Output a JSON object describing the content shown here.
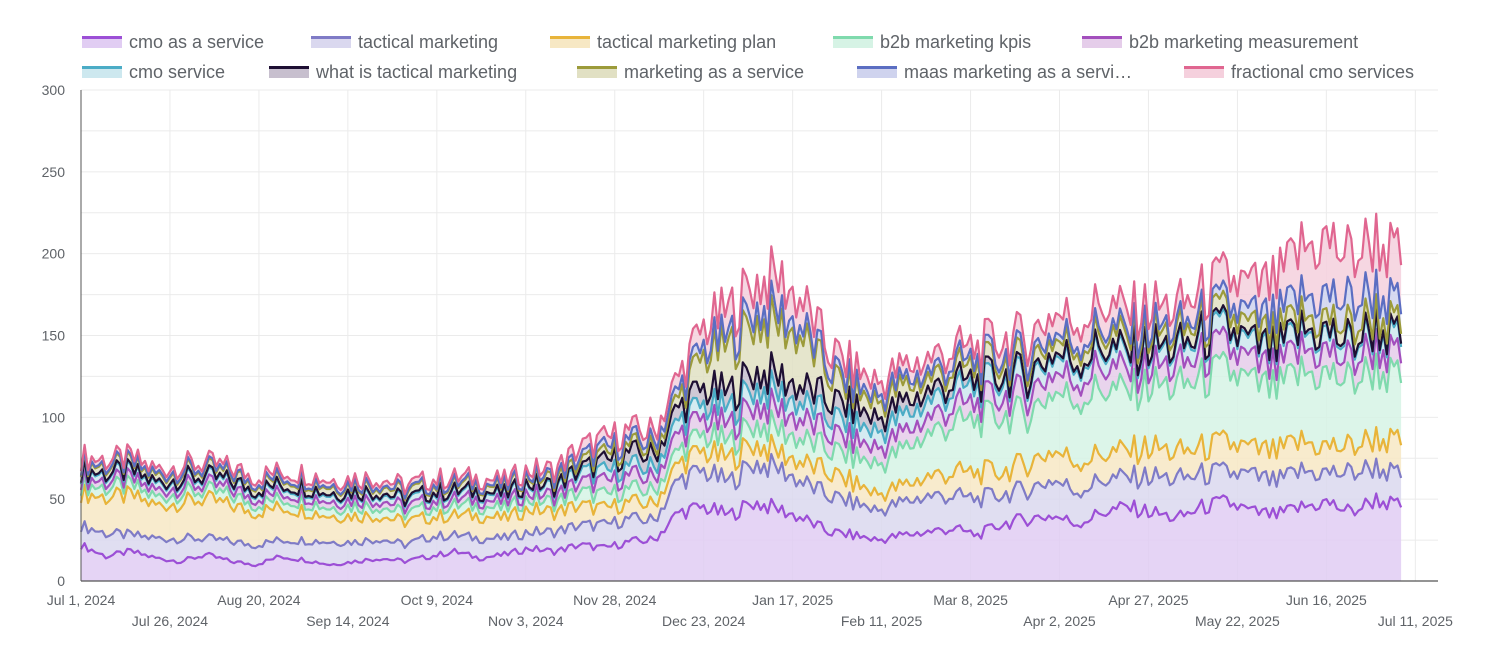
{
  "chart_data": {
    "type": "area",
    "stacked": true,
    "title": "",
    "xlabel": "",
    "ylabel": "",
    "ylim": [
      0,
      300
    ],
    "yticks": [
      0,
      50,
      100,
      150,
      200,
      250,
      300
    ],
    "grid": true,
    "legend_position": "top",
    "x_start": "2024-07-01",
    "x_end": "2025-07-14",
    "x_step_days": 7,
    "xtick_labels_row1": [
      {
        "label": "Jul 1, 2024",
        "day": 0
      },
      {
        "label": "Aug 20, 2024",
        "day": 50
      },
      {
        "label": "Oct 9, 2024",
        "day": 100
      },
      {
        "label": "Nov 28, 2024",
        "day": 150
      },
      {
        "label": "Jan 17, 2025",
        "day": 200
      },
      {
        "label": "Mar 8, 2025",
        "day": 250
      },
      {
        "label": "Apr 27, 2025",
        "day": 300
      },
      {
        "label": "Jun 16, 2025",
        "day": 350
      }
    ],
    "xtick_labels_row2": [
      {
        "label": "Jul 26, 2024",
        "day": 25
      },
      {
        "label": "Sep 14, 2024",
        "day": 75
      },
      {
        "label": "Nov 3, 2024",
        "day": 125
      },
      {
        "label": "Dec 23, 2024",
        "day": 175
      },
      {
        "label": "Feb 11, 2025",
        "day": 225
      },
      {
        "label": "Apr 2, 2025",
        "day": 275
      },
      {
        "label": "May 22, 2025",
        "day": 325
      },
      {
        "label": "Jul 11, 2025",
        "day": 375
      }
    ],
    "series": [
      {
        "name": "cmo as a service",
        "line": "#9c4fd6",
        "fill": "#e1cdf3",
        "values": [
          22,
          15,
          18,
          14,
          12,
          16,
          12,
          10,
          15,
          13,
          10,
          12,
          14,
          12,
          15,
          18,
          14,
          16,
          20,
          18,
          22,
          20,
          24,
          25,
          42,
          45,
          40,
          48,
          44,
          38,
          30,
          28,
          25,
          28,
          30,
          32,
          28,
          35,
          38,
          40,
          35,
          42,
          45,
          42,
          38,
          45,
          48,
          42,
          40,
          45,
          48,
          42,
          50,
          45
        ]
      },
      {
        "name": "tactical marketing",
        "line": "#7f7bc6",
        "fill": "#dad8ef",
        "values": [
          12,
          14,
          10,
          12,
          14,
          10,
          12,
          12,
          10,
          12,
          14,
          12,
          12,
          10,
          12,
          10,
          12,
          10,
          10,
          12,
          12,
          14,
          14,
          12,
          20,
          22,
          20,
          24,
          25,
          22,
          22,
          20,
          18,
          20,
          22,
          20,
          22,
          18,
          18,
          22,
          20,
          20,
          18,
          22,
          24,
          20,
          18,
          22,
          20,
          22,
          18,
          24,
          20,
          18
        ]
      },
      {
        "name": "tactical marketing plan",
        "line": "#e8b43a",
        "fill": "#f7e8c4",
        "values": [
          20,
          22,
          24,
          20,
          22,
          24,
          22,
          20,
          20,
          18,
          16,
          16,
          14,
          14,
          12,
          12,
          14,
          12,
          14,
          12,
          12,
          10,
          10,
          10,
          10,
          12,
          14,
          12,
          10,
          12,
          14,
          12,
          10,
          10,
          12,
          14,
          16,
          14,
          16,
          18,
          18,
          16,
          16,
          18,
          16,
          16,
          18,
          16,
          18,
          18,
          16,
          16,
          18,
          20
        ]
      },
      {
        "name": "b2b marketing kpis",
        "line": "#7fdaad",
        "fill": "#d6f3e5",
        "values": [
          5,
          6,
          6,
          5,
          6,
          5,
          6,
          5,
          5,
          6,
          5,
          6,
          6,
          5,
          6,
          6,
          6,
          6,
          6,
          6,
          8,
          8,
          8,
          8,
          8,
          10,
          10,
          12,
          14,
          14,
          14,
          16,
          18,
          22,
          26,
          30,
          32,
          34,
          30,
          36,
          38,
          40,
          36,
          38,
          40,
          42,
          44,
          40,
          38,
          42,
          44,
          40,
          42,
          38
        ]
      },
      {
        "name": "b2b marketing measurement",
        "line": "#a34fbd",
        "fill": "#e5cdea",
        "values": [
          4,
          4,
          4,
          4,
          4,
          4,
          4,
          4,
          4,
          4,
          4,
          4,
          4,
          4,
          4,
          4,
          4,
          4,
          4,
          4,
          6,
          8,
          8,
          8,
          10,
          10,
          10,
          12,
          12,
          12,
          10,
          10,
          10,
          10,
          10,
          10,
          10,
          12,
          12,
          12,
          12,
          14,
          12,
          12,
          12,
          14,
          14,
          12,
          12,
          14,
          14,
          12,
          14,
          12
        ]
      },
      {
        "name": "cmo service",
        "line": "#4bacc6",
        "fill": "#cde8ef",
        "values": [
          4,
          4,
          4,
          4,
          4,
          4,
          4,
          4,
          4,
          4,
          4,
          4,
          4,
          4,
          4,
          4,
          4,
          4,
          5,
          5,
          6,
          6,
          6,
          6,
          8,
          8,
          10,
          10,
          10,
          10,
          10,
          10,
          10,
          10,
          10,
          10,
          10,
          10,
          10,
          10,
          10,
          10,
          10,
          10,
          10,
          10,
          10,
          10,
          10,
          10,
          10,
          10,
          10,
          10
        ]
      },
      {
        "name": "what is tactical marketing",
        "line": "#1e0f33",
        "fill": "#c7bfce",
        "values": [
          1,
          1,
          1,
          1,
          1,
          1,
          1,
          1,
          1,
          1,
          1,
          1,
          1,
          1,
          1,
          1,
          1,
          1,
          1,
          1,
          2,
          6,
          8,
          8,
          8,
          10,
          10,
          10,
          10,
          10,
          10,
          10,
          8,
          8,
          6,
          5,
          4,
          3,
          2,
          2,
          2,
          2,
          2,
          2,
          2,
          2,
          2,
          2,
          2,
          2,
          2,
          2,
          2,
          2
        ]
      },
      {
        "name": "marketing as a service",
        "line": "#9c9b3a",
        "fill": "#e1e0c3",
        "values": [
          4,
          4,
          4,
          4,
          4,
          4,
          4,
          4,
          4,
          4,
          4,
          4,
          4,
          4,
          4,
          4,
          4,
          4,
          4,
          4,
          4,
          4,
          4,
          4,
          6,
          20,
          28,
          30,
          32,
          30,
          16,
          10,
          10,
          10,
          8,
          8,
          8,
          8,
          8,
          8,
          8,
          8,
          8,
          8,
          8,
          8,
          8,
          8,
          8,
          8,
          8,
          8,
          8,
          6
        ]
      },
      {
        "name": "maas marketing as a servi…",
        "line": "#5b6ec2",
        "fill": "#cfd3ee",
        "values": [
          1,
          1,
          1,
          1,
          1,
          1,
          1,
          1,
          1,
          1,
          1,
          1,
          1,
          1,
          1,
          1,
          1,
          1,
          1,
          2,
          3,
          4,
          4,
          4,
          5,
          6,
          6,
          8,
          8,
          6,
          5,
          4,
          4,
          4,
          4,
          4,
          4,
          4,
          4,
          4,
          4,
          4,
          4,
          4,
          4,
          4,
          6,
          8,
          10,
          12,
          14,
          16,
          14,
          12
        ]
      },
      {
        "name": "fractional cmo services",
        "line": "#e06690",
        "fill": "#f5d0dd",
        "values": [
          3,
          3,
          3,
          3,
          3,
          3,
          3,
          3,
          3,
          3,
          3,
          3,
          3,
          3,
          3,
          3,
          3,
          3,
          3,
          4,
          6,
          6,
          6,
          6,
          8,
          12,
          16,
          16,
          20,
          16,
          10,
          10,
          8,
          8,
          8,
          8,
          8,
          10,
          10,
          12,
          12,
          14,
          12,
          12,
          12,
          14,
          16,
          18,
          22,
          30,
          34,
          28,
          32,
          30
        ]
      }
    ]
  },
  "legend": {
    "row1": [
      "cmo as a service",
      "tactical marketing",
      "tactical marketing plan",
      "b2b marketing kpis",
      "b2b marketing measurement"
    ],
    "row2": [
      "cmo service",
      "what is tactical marketing",
      "marketing as a service",
      "maas marketing as a servi…",
      "fractional cmo services"
    ]
  }
}
